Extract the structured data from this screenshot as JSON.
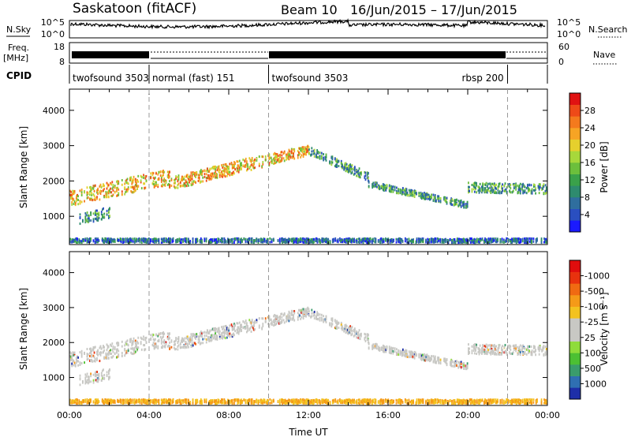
{
  "header": {
    "station": "Saskatoon (fitACF)",
    "beam": "Beam 10",
    "date_range": "16/Jun/2015 – 17/Jun/2015"
  },
  "noise_panel": {
    "left_label": "N.Sky",
    "left_ticks": [
      "10^5",
      "10^0"
    ],
    "right_label": "N.Search",
    "right_ticks": [
      "10^5",
      "10^0"
    ]
  },
  "freq_panel": {
    "left_label_1": "Freq.",
    "left_label_2": "[MHz]",
    "left_ticks": [
      "18",
      "8"
    ],
    "right_label": "Nave",
    "right_ticks": [
      "60",
      "0"
    ]
  },
  "cpid_panel": {
    "label": "CPID",
    "segments": [
      {
        "start_hour": 0,
        "text": "twofsound 3503"
      },
      {
        "start_hour": 4,
        "text": "normal (fast) 151"
      },
      {
        "start_hour": 10,
        "text": "twofsound 3503"
      },
      {
        "start_hour": 22,
        "text": "rbsp 200"
      }
    ]
  },
  "chart_data": [
    {
      "type": "heatmap",
      "name": "power",
      "ylabel": "Slant Range [km]",
      "xlabel": "",
      "xlim_hours": [
        0,
        24
      ],
      "ylim": [
        200,
        4600
      ],
      "y_ticks": [
        1000,
        2000,
        3000,
        4000
      ],
      "colorbar": {
        "label": "Power [dB]",
        "ticks": [
          "4",
          "8",
          "12",
          "16",
          "20",
          "24",
          "28"
        ],
        "colors": [
          "#1a1aff",
          "#2a4fc0",
          "#2f6e9e",
          "#2e8b6e",
          "#3aa14a",
          "#6cbf3c",
          "#a7d83b",
          "#e6d02d",
          "#f7a424",
          "#f47a1d",
          "#ee4a18",
          "#e01212"
        ]
      }
    },
    {
      "type": "heatmap",
      "name": "velocity",
      "ylabel": "Slant Range [km]",
      "xlabel": "Time UT",
      "xlim_hours": [
        0,
        24
      ],
      "ylim": [
        200,
        4600
      ],
      "y_ticks": [
        1000,
        2000,
        3000,
        4000
      ],
      "x_tick_labels": [
        "00:00",
        "04:00",
        "08:00",
        "12:00",
        "16:00",
        "20:00",
        "00:00"
      ],
      "colorbar": {
        "label": "Velocity [m s⁻¹]",
        "ticks": [
          "1000",
          "500",
          "100",
          "25",
          "-25",
          "-100",
          "-500",
          "-1000"
        ],
        "colors": [
          "#1d2ea8",
          "#2f6fb2",
          "#3a9c6c",
          "#4cc033",
          "#8fdc3a",
          "#c8c8c4",
          "#c8c8c4",
          "#f3c21f",
          "#f59a18",
          "#f06a12",
          "#e8320e",
          "#e00d0d"
        ]
      }
    }
  ]
}
